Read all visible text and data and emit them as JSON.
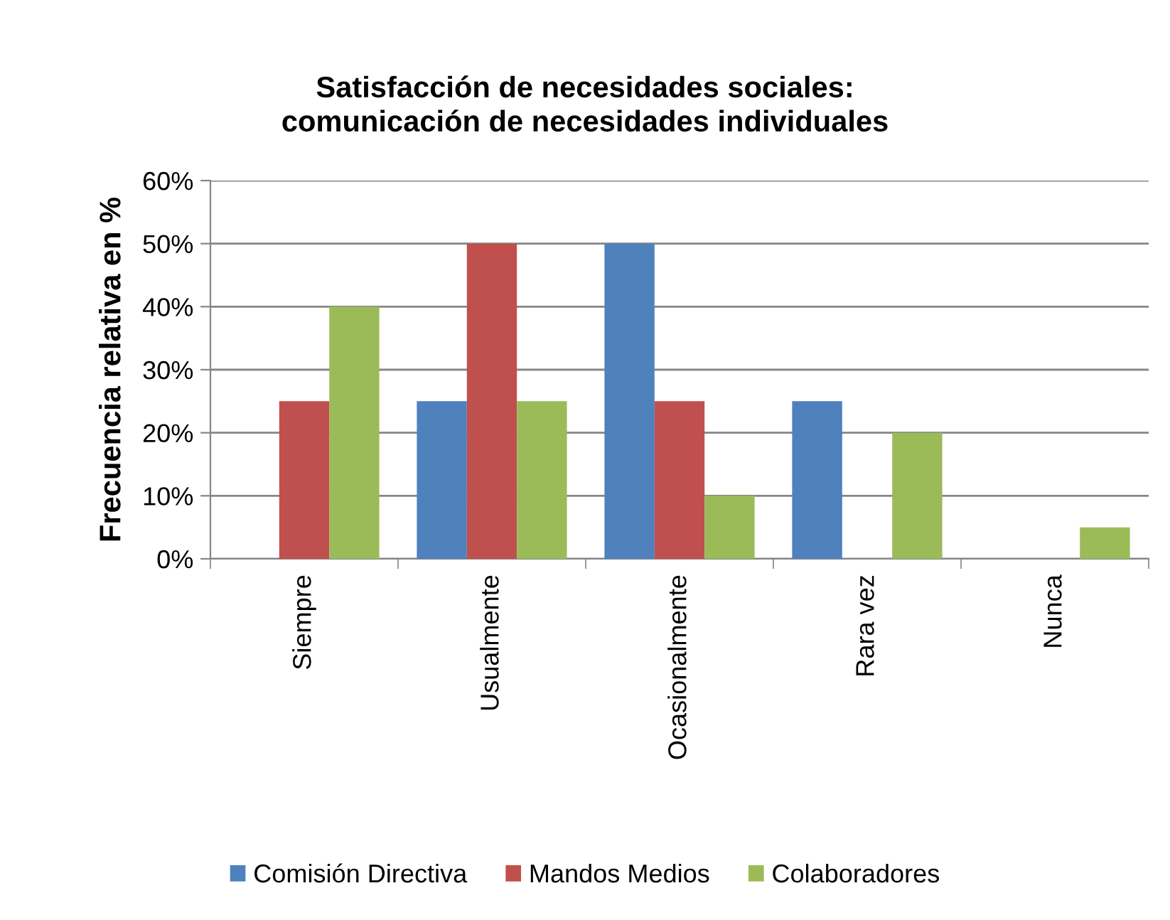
{
  "chart_data": {
    "type": "bar",
    "title": "Satisfacción de necesidades sociales:\ncomunicación de necesidades individuales",
    "ylabel": "Frecuencia relativa en %",
    "categories": [
      "Siempre",
      "Usualmente",
      "Ocasionalmente",
      "Rara vez",
      "Nunca"
    ],
    "series": [
      {
        "name": "Comisión Directiva",
        "color": "#4f81bd",
        "values": [
          0,
          25,
          50,
          25,
          0
        ]
      },
      {
        "name": "Mandos Medios",
        "color": "#c0504d",
        "values": [
          25,
          50,
          25,
          0,
          0
        ]
      },
      {
        "name": "Colaboradores",
        "color": "#9bbb59",
        "values": [
          40,
          25,
          10,
          20,
          5
        ]
      }
    ],
    "ylim": [
      0,
      60
    ],
    "yticks": [
      {
        "value": 0,
        "label": "0%"
      },
      {
        "value": 10,
        "label": "10%"
      },
      {
        "value": 20,
        "label": "20%"
      },
      {
        "value": 30,
        "label": "30%"
      },
      {
        "value": 40,
        "label": "40%"
      },
      {
        "value": 50,
        "label": "50%"
      },
      {
        "value": 60,
        "label": "60%"
      }
    ],
    "grid": "y",
    "legend": "bottom"
  }
}
